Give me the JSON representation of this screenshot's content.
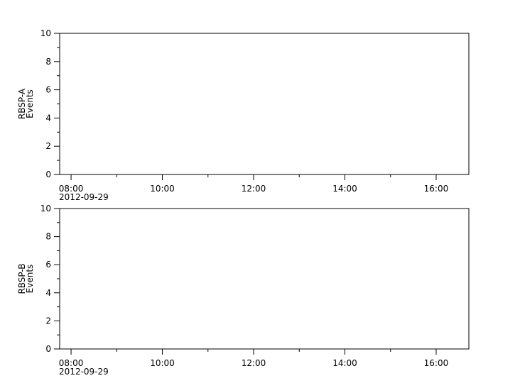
{
  "chart_data": [
    {
      "type": "line",
      "ylabel": [
        "RBSP-A",
        "Events"
      ],
      "ylim": [
        0,
        10
      ],
      "yticks": [
        "0",
        "2",
        "4",
        "6",
        "8",
        "10"
      ],
      "xlim": [
        "07:45",
        "16:43"
      ],
      "xticks": [
        "08:00",
        "10:00",
        "12:00",
        "14:00",
        "16:00"
      ],
      "date_label": "2012-09-29",
      "series": [],
      "grid": false
    },
    {
      "type": "line",
      "ylabel": [
        "RBSP-B",
        "Events"
      ],
      "ylim": [
        0,
        10
      ],
      "yticks": [
        "0",
        "2",
        "4",
        "6",
        "8",
        "10"
      ],
      "xlim": [
        "07:45",
        "16:43"
      ],
      "xticks": [
        "08:00",
        "10:00",
        "12:00",
        "14:00",
        "16:00"
      ],
      "date_label": "2012-09-29",
      "series": [],
      "grid": false
    }
  ]
}
